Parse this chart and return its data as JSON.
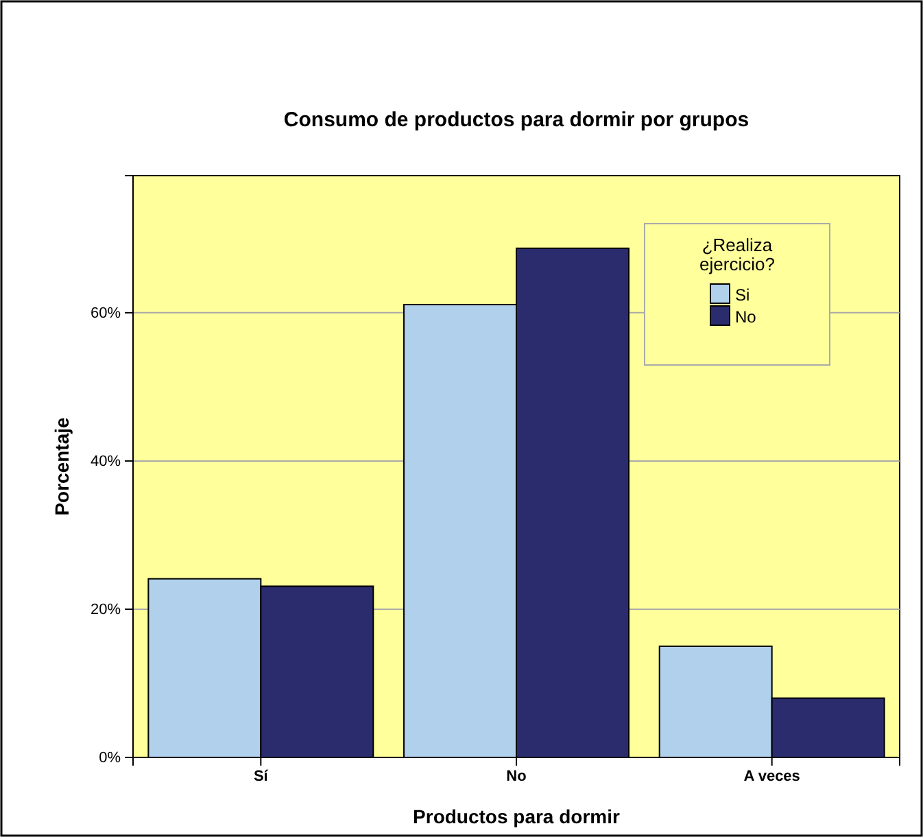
{
  "chart_data": {
    "type": "bar",
    "title": "Consumo de productos para dormir por grupos",
    "xlabel": "Productos para dormir",
    "ylabel": "Porcentaje",
    "legend_title": "¿Realiza ejercicio?",
    "categories": [
      "Sí",
      "No",
      "A veces"
    ],
    "series": [
      {
        "name": "Si",
        "color": "#b0d0ec",
        "values": [
          24.1,
          61.1,
          15.0
        ]
      },
      {
        "name": "No",
        "color": "#2a2c6e",
        "values": [
          23.1,
          68.7,
          8.0
        ]
      }
    ],
    "ylim": [
      0,
      78.5
    ],
    "yticks": [
      {
        "value": 0,
        "label": "0%"
      },
      {
        "value": 20,
        "label": "20%"
      },
      {
        "value": 40,
        "label": "40%"
      },
      {
        "value": 60,
        "label": "60%"
      }
    ],
    "grid": "y",
    "legend": "top right"
  }
}
